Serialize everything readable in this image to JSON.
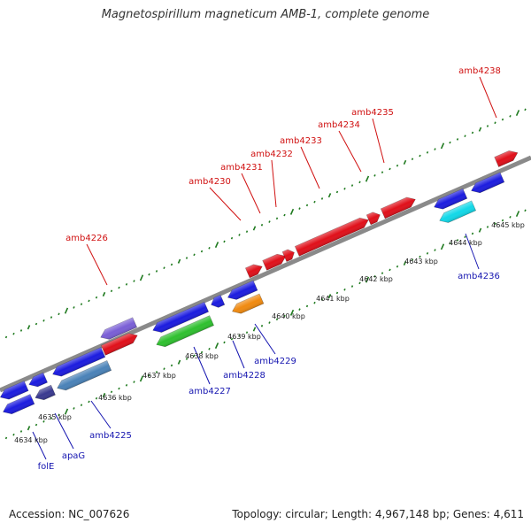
{
  "title": "Magnetospirillum magneticum AMB-1, complete genome",
  "footer": {
    "accession": "Accession: NC_007626",
    "summary": "Topology: circular; Length: 4,967,148 bp; Genes: 4,611"
  },
  "colors": {
    "forward_gene": "#e0101a",
    "reverse_gene": "#1c1cdf",
    "forward_label": "#d01010",
    "reverse_label": "#1515b0",
    "backbone": "#8a8a8a",
    "tick": "#1f7a1f"
  },
  "kbp_ticks": [
    "4634 kbp",
    "4635 kbp",
    "4636 kbp",
    "4637 kbp",
    "4638 kbp",
    "4639 kbp",
    "4640 kbp",
    "4641 kbp",
    "4642 kbp",
    "4643 kbp",
    "4644 kbp",
    "4645 kbp"
  ],
  "forward_genes": [
    {
      "label": "amb4226",
      "color": "#e0101a"
    },
    {
      "label": "amb4230",
      "color": "#e0101a"
    },
    {
      "label": "amb4231",
      "color": "#e0101a"
    },
    {
      "label": "amb4232",
      "color": "#e0101a"
    },
    {
      "label": "amb4233",
      "color": "#e0101a"
    },
    {
      "label": "amb4234",
      "color": "#e0101a"
    },
    {
      "label": "amb4235",
      "color": "#e0101a"
    },
    {
      "label": "amb4238",
      "color": "#e0101a"
    }
  ],
  "reverse_genes": [
    {
      "label": "folE",
      "color": "#1c1cdf"
    },
    {
      "label": "apaG",
      "color": "#3a3a90"
    },
    {
      "label": "amb4225",
      "color": "#4a82b8"
    },
    {
      "label": "amb4227",
      "color": "#2fc02f"
    },
    {
      "label": "amb4228",
      "color": "#f08a10"
    },
    {
      "label": "amb4229",
      "color": "#1c1cdf"
    },
    {
      "label": "amb4236",
      "color": "#12d8e8"
    }
  ],
  "extra_feature_colors": {
    "lavender": "#7a5fd6",
    "blue": "#1c1cdf"
  }
}
